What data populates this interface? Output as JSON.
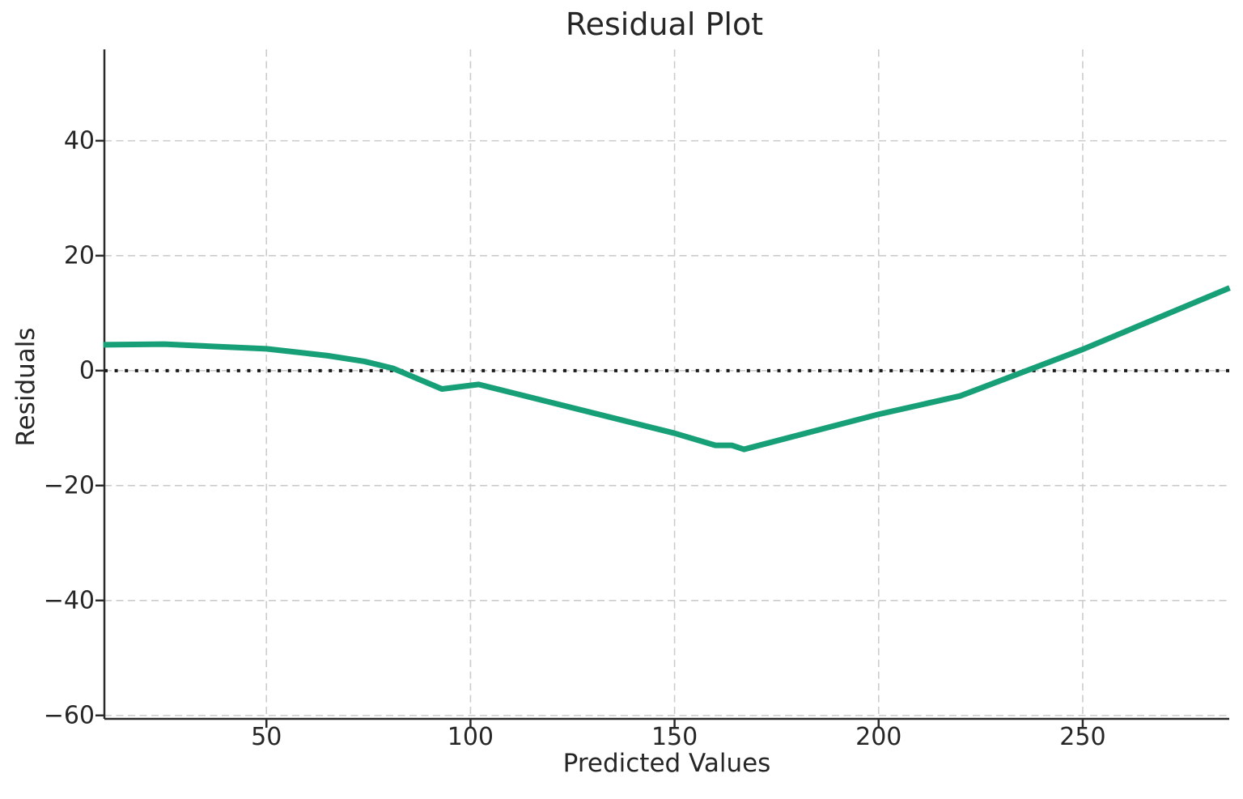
{
  "figure": {
    "title": "Residual Plot",
    "xlabel": "Predicted Values",
    "ylabel": "Residuals"
  },
  "style": {
    "accent": "#17a077",
    "grid_color": "#cccccc",
    "text_color": "#262626",
    "spine_color": "#2a2a2a",
    "zero_line_color": "#1a1a1a",
    "background": "#ffffff"
  },
  "chart_data": {
    "type": "line",
    "title": "Residual Plot",
    "xlabel": "Predicted Values",
    "ylabel": "Residuals",
    "xlim": [
      10.3,
      285.9
    ],
    "ylim": [
      -60.6,
      55.9
    ],
    "x_ticks": [
      50,
      100,
      150,
      200,
      250
    ],
    "y_ticks": [
      40,
      20,
      0,
      -20,
      -40,
      -60
    ],
    "grid": true,
    "grid_style": "dashed",
    "legend": "none",
    "reference_line": {
      "y": 0,
      "style": "dotted",
      "color": "#1a1a1a"
    },
    "series": [
      {
        "name": "residuals",
        "color": "#17a077",
        "x": [
          10,
          25,
          50,
          65,
          74,
          81,
          93,
          102,
          150,
          160,
          164,
          167,
          200,
          220,
          250,
          286
        ],
        "y": [
          4.5,
          4.6,
          3.8,
          2.6,
          1.6,
          0.4,
          -3.2,
          -2.4,
          -10.9,
          -13.0,
          -13.0,
          -13.7,
          -7.6,
          -4.4,
          3.7,
          14.4
        ]
      }
    ]
  }
}
